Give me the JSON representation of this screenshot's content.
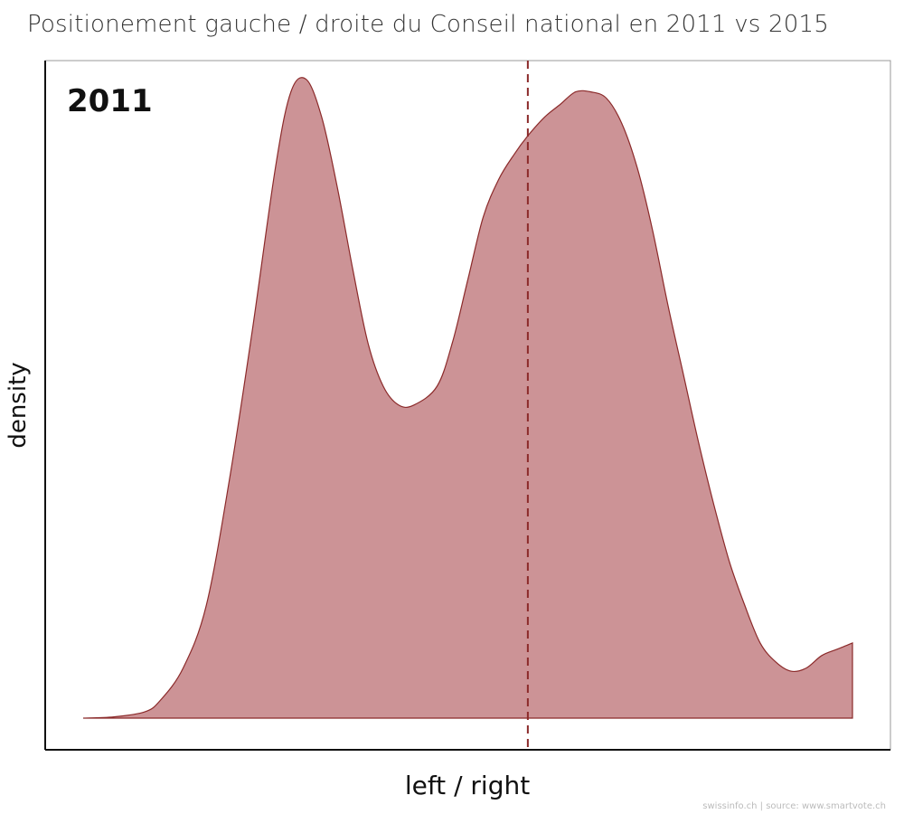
{
  "title": "Positionement gauche / droite du Conseil national en 2011 vs 2015",
  "source_note": "swissinfo.ch | source: www.smartvote.ch",
  "chart_data": {
    "type": "area",
    "title": "Positionement gauche / droite du Conseil national en 2011 vs 2015",
    "panel_label": "2011",
    "xlabel": "left / right",
    "ylabel": "density",
    "xlim": [
      0,
      1
    ],
    "ylim": [
      0,
      1.05
    ],
    "grid": false,
    "fill_color": "#cc9396",
    "line_color": "#8b2a2a",
    "mean_line_color": "#8b2a2a",
    "mean_x": 0.578,
    "series": [
      {
        "x": [
          0.0,
          0.04,
          0.08,
          0.1,
          0.13,
          0.16,
          0.19,
          0.22,
          0.25,
          0.27,
          0.29,
          0.31,
          0.33,
          0.35,
          0.37,
          0.39,
          0.41,
          0.43,
          0.46,
          0.48,
          0.5,
          0.52,
          0.54,
          0.56,
          0.578,
          0.6,
          0.62,
          0.64,
          0.66,
          0.68,
          0.7,
          0.72,
          0.74,
          0.76,
          0.78,
          0.8,
          0.82,
          0.84,
          0.86,
          0.88,
          0.9,
          0.92,
          0.94,
          0.96,
          0.98,
          1.0
        ],
        "values": [
          0.0,
          0.002,
          0.01,
          0.028,
          0.08,
          0.18,
          0.38,
          0.62,
          0.88,
          1.0,
          1.02,
          0.96,
          0.85,
          0.72,
          0.6,
          0.53,
          0.5,
          0.5,
          0.53,
          0.6,
          0.7,
          0.8,
          0.86,
          0.9,
          0.93,
          0.96,
          0.98,
          1.0,
          1.0,
          0.99,
          0.95,
          0.88,
          0.78,
          0.66,
          0.55,
          0.44,
          0.34,
          0.25,
          0.18,
          0.12,
          0.09,
          0.075,
          0.08,
          0.1,
          0.11,
          0.12
        ]
      }
    ]
  }
}
